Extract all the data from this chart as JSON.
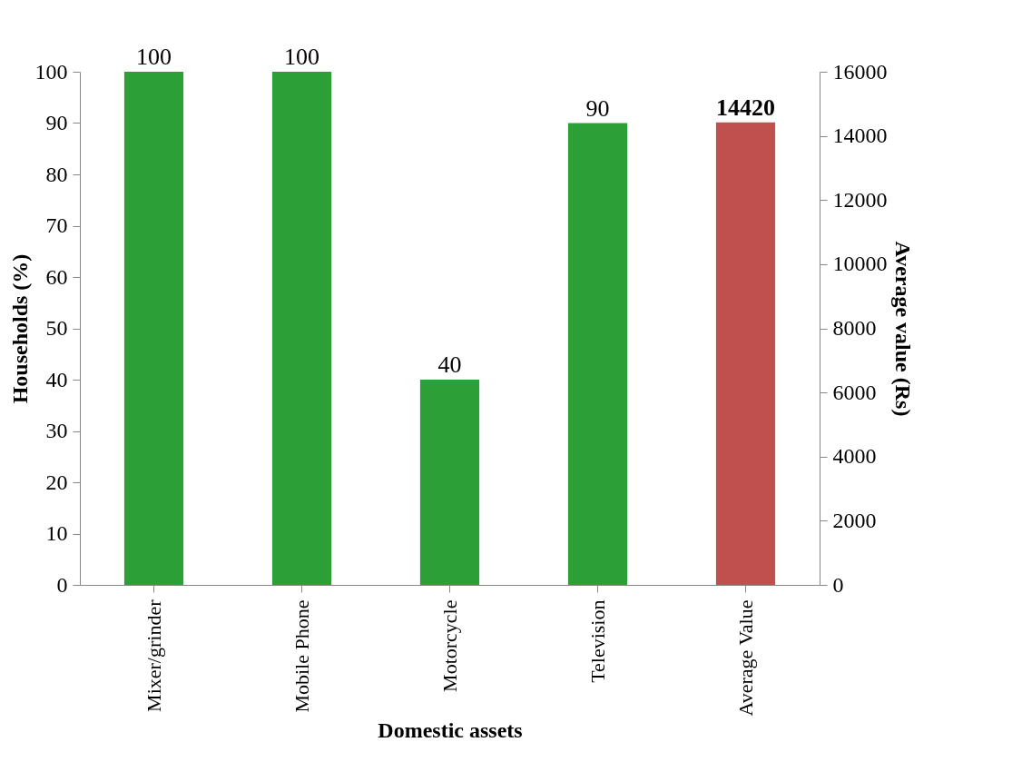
{
  "chart_data": {
    "type": "bar",
    "categories": [
      "Mixer/grinder",
      "Mobile Phone",
      "Motorcycle",
      "Television",
      "Average Value"
    ],
    "series": [
      {
        "color": "#2ca036",
        "values": [
          100,
          100,
          40,
          90,
          null
        ]
      },
      {
        "color": "#c0504d",
        "axis": "y2",
        "values": [
          null,
          null,
          null,
          null,
          14420
        ]
      }
    ],
    "xlabel": "Domestic assets",
    "ylabel": "Households (%)",
    "y2label": "Average value (Rs)",
    "ylim": [
      0,
      100
    ],
    "yticks": [
      0,
      10,
      20,
      30,
      40,
      50,
      60,
      70,
      80,
      90,
      100
    ],
    "y2lim": [
      0,
      16000
    ],
    "y2ticks": [
      0,
      2000,
      4000,
      6000,
      8000,
      10000,
      12000,
      14000,
      16000
    ],
    "data_labels": true,
    "grid": false
  }
}
